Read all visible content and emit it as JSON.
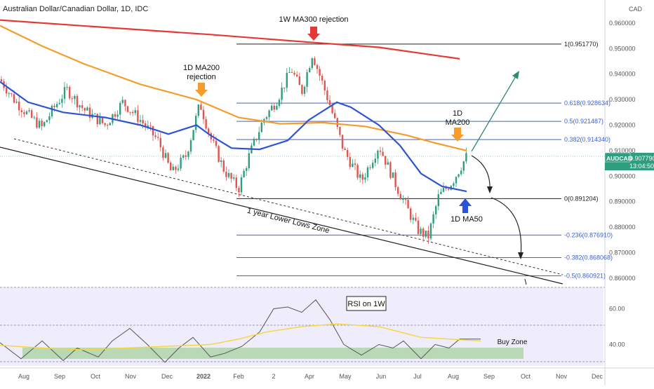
{
  "header": {
    "title": "Australian Dollar/Canadian Dollar, 1D, IDC",
    "currency": "CAD"
  },
  "price_label": {
    "symbol": "AUDCAD",
    "price": "0.907790",
    "countdown": "13:04:50"
  },
  "annotations": {
    "ma300_rejection": "1W MA300 rejection",
    "ma200_rejection_line1": "1D MA200",
    "ma200_rejection_line2": "rejection",
    "ma200_now_line1": "1D",
    "ma200_now_line2": "MA200",
    "ma50": "1D MA50",
    "lower_lows_zone": "1 year Lower Lows Zone",
    "rsi_title": "RSI on 1W",
    "buy_zone": "Buy Zone"
  },
  "colors": {
    "ma300": "#e53935",
    "ma200": "#f59c2c",
    "ma50": "#2b54d6",
    "candle_up": "#2e9e7f",
    "candle_down": "#e0554e",
    "fib": "#3b63d4",
    "rsi_line": "#555555",
    "rsi_ma": "#f4d73a",
    "rsi_panel": "#efecfb",
    "buy_zone": "#b9d8b6",
    "target_arrow": "#2e8c6a",
    "down_arrow": "#222222"
  },
  "chart_data": [
    {
      "type": "candlestick",
      "name": "price",
      "x_axis": {
        "labels": [
          "Aug",
          "Sep",
          "Oct",
          "Nov",
          "Dec",
          "2022",
          "Feb",
          "2",
          "Apr",
          "May",
          "Jun",
          "Jul",
          "Aug",
          "Sep",
          "Oct",
          "Nov",
          "Dec"
        ]
      },
      "y_axis": {
        "ticks": [
          "0.960000",
          "0.950000",
          "0.940000",
          "0.930000",
          "0.920000",
          "0.910000",
          "0.900000",
          "0.890000",
          "0.880000",
          "0.870000",
          "0.860000"
        ],
        "ylim": [
          0.8575,
          0.963
        ]
      },
      "fibonacci_levels": [
        {
          "label": "1(0.951770)",
          "value": 0.95177
        },
        {
          "label": "0.618(0.928634)",
          "value": 0.928634
        },
        {
          "label": "0.5(0.921487)",
          "value": 0.921487
        },
        {
          "label": "0.382(0.914340)",
          "value": 0.91434
        },
        {
          "label": "0(0.891204)",
          "value": 0.891204
        },
        {
          "label": "-0.236(0.876910)",
          "value": 0.87691
        },
        {
          "label": "-0.382(0.868068)",
          "value": 0.868068
        },
        {
          "label": "-0.5(0.860921)",
          "value": 0.860921
        }
      ],
      "series": [
        {
          "name": "1W MA300",
          "points": [
            [
              0,
              0.9612
            ],
            [
              140,
              0.9585
            ],
            [
              300,
              0.9555
            ],
            [
              440,
              0.9525
            ],
            [
              540,
              0.9505
            ],
            [
              655,
              0.946
            ]
          ]
        },
        {
          "name": "1D MA200",
          "points": [
            [
              0,
              0.959
            ],
            [
              60,
              0.951
            ],
            [
              120,
              0.944
            ],
            [
              200,
              0.936
            ],
            [
              280,
              0.93
            ],
            [
              340,
              0.923
            ],
            [
              400,
              0.9205
            ],
            [
              460,
              0.921
            ],
            [
              520,
              0.9195
            ],
            [
              580,
              0.916
            ],
            [
              620,
              0.913
            ],
            [
              665,
              0.91
            ]
          ]
        },
        {
          "name": "1D MA50",
          "points": [
            [
              0,
              0.937
            ],
            [
              40,
              0.929
            ],
            [
              90,
              0.925
            ],
            [
              150,
              0.923
            ],
            [
              200,
              0.92
            ],
            [
              240,
              0.9165
            ],
            [
              280,
              0.92
            ],
            [
              300,
              0.916
            ],
            [
              330,
              0.911
            ],
            [
              370,
              0.9105
            ],
            [
              410,
              0.914
            ],
            [
              440,
              0.922
            ],
            [
              480,
              0.929
            ],
            [
              500,
              0.927
            ],
            [
              540,
              0.92
            ],
            [
              570,
              0.912
            ],
            [
              600,
              0.901
            ],
            [
              630,
              0.896
            ],
            [
              665,
              0.894
            ]
          ]
        }
      ],
      "swing_path": [
        [
          0,
          0.938
        ],
        [
          20,
          0.93
        ],
        [
          40,
          0.924
        ],
        [
          60,
          0.919
        ],
        [
          75,
          0.926
        ],
        [
          95,
          0.934
        ],
        [
          120,
          0.926
        ],
        [
          150,
          0.92
        ],
        [
          175,
          0.929
        ],
        [
          200,
          0.922
        ],
        [
          225,
          0.914
        ],
        [
          245,
          0.901
        ],
        [
          265,
          0.908
        ],
        [
          285,
          0.9285
        ],
        [
          300,
          0.915
        ],
        [
          320,
          0.902
        ],
        [
          340,
          0.895
        ],
        [
          355,
          0.908
        ],
        [
          375,
          0.922
        ],
        [
          395,
          0.93
        ],
        [
          415,
          0.942
        ],
        [
          430,
          0.933
        ],
        [
          445,
          0.948
        ],
        [
          470,
          0.928
        ],
        [
          490,
          0.91
        ],
        [
          515,
          0.898
        ],
        [
          540,
          0.912
        ],
        [
          565,
          0.896
        ],
        [
          595,
          0.879
        ],
        [
          610,
          0.876
        ],
        [
          625,
          0.892
        ],
        [
          645,
          0.898
        ],
        [
          665,
          0.9078
        ]
      ],
      "last_price": 0.90779
    },
    {
      "type": "line",
      "name": "RSI on 1W",
      "y_axis": {
        "ticks": [
          "60.00",
          "40.00"
        ],
        "ylim": [
          28,
          72
        ],
        "levels": [
          70,
          50,
          30
        ]
      },
      "buy_zone": [
        31,
        36
      ],
      "series": [
        {
          "name": "RSI",
          "points": [
            [
              0,
              41
            ],
            [
              30,
              32
            ],
            [
              60,
              42
            ],
            [
              90,
              31
            ],
            [
              110,
              38
            ],
            [
              140,
              33
            ],
            [
              160,
              42
            ],
            [
              185,
              49
            ],
            [
              210,
              40
            ],
            [
              235,
              30
            ],
            [
              255,
              38
            ],
            [
              275,
              44
            ],
            [
              300,
              33
            ],
            [
              320,
              35
            ],
            [
              345,
              39
            ],
            [
              370,
              47
            ],
            [
              390,
              60
            ],
            [
              410,
              61
            ],
            [
              430,
              58
            ],
            [
              450,
              65
            ],
            [
              470,
              54
            ],
            [
              490,
              40
            ],
            [
              515,
              34
            ],
            [
              540,
              40
            ],
            [
              560,
              38
            ],
            [
              575,
              42
            ],
            [
              600,
              32
            ],
            [
              620,
              40
            ],
            [
              640,
              38
            ],
            [
              655,
              43
            ],
            [
              685,
              43
            ]
          ]
        },
        {
          "name": "RSI MA",
          "points": [
            [
              0,
              39.5
            ],
            [
              60,
              38
            ],
            [
              120,
              37
            ],
            [
              180,
              38
            ],
            [
              240,
              39
            ],
            [
              300,
              40
            ],
            [
              340,
              43
            ],
            [
              380,
              47
            ],
            [
              430,
              50
            ],
            [
              480,
              51.5
            ],
            [
              540,
              50
            ],
            [
              600,
              44
            ],
            [
              685,
              42
            ]
          ]
        }
      ]
    }
  ]
}
